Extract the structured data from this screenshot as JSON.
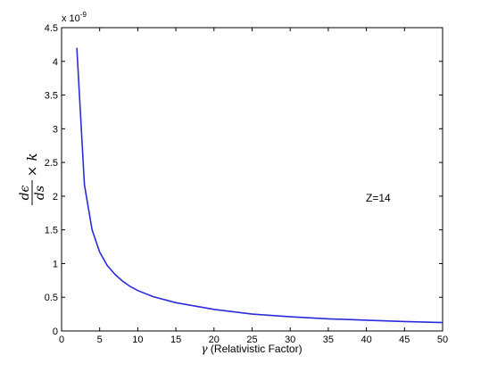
{
  "chart_data": {
    "type": "line",
    "title": "",
    "xlabel_symbol": "γ",
    "xlabel_text": "(Relativistic Factor)",
    "ylabel": {
      "num": "dϵ",
      "den": "ds",
      "times": "×",
      "k": "k"
    },
    "y_scale_factor": "x 10",
    "y_scale_exponent": "-9",
    "annotation": "Z=14",
    "xlim": [
      0,
      50
    ],
    "ylim": [
      0,
      4.5
    ],
    "xticks": [
      0,
      5,
      10,
      15,
      20,
      25,
      30,
      35,
      40,
      45,
      50
    ],
    "yticks": [
      0,
      0.5,
      1,
      1.5,
      2,
      2.5,
      3,
      3.5,
      4,
      4.5
    ],
    "ytick_labels": [
      "0",
      "0.5",
      "1",
      "1.5",
      "2",
      "2.5",
      "3",
      "3.5",
      "4",
      "4.5"
    ],
    "grid": false,
    "line_color": "#2b2bdb",
    "series": [
      {
        "x": [
          2,
          3,
          4,
          5,
          6,
          7,
          8,
          9,
          10,
          12,
          15,
          20,
          25,
          30,
          35,
          40,
          45,
          50
        ],
        "y": [
          4.2,
          2.17,
          1.5,
          1.17,
          0.97,
          0.84,
          0.74,
          0.66,
          0.6,
          0.51,
          0.42,
          0.32,
          0.25,
          0.21,
          0.18,
          0.16,
          0.14,
          0.125
        ]
      }
    ]
  }
}
